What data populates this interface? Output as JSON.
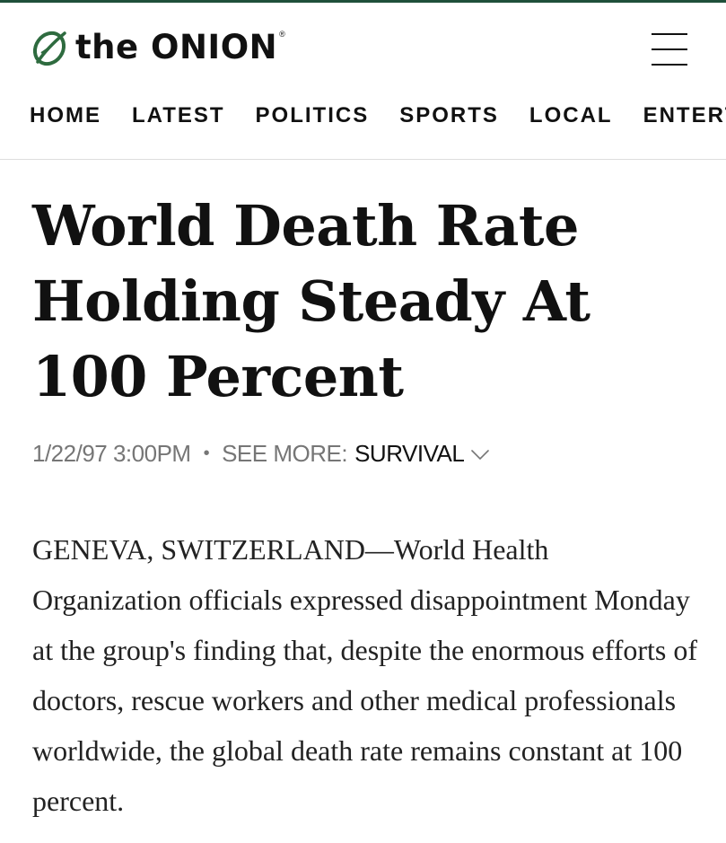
{
  "header": {
    "logo_text": "the ONION",
    "logo_registered": "®",
    "logo_icon": "onion-leaf-icon",
    "menu_icon": "hamburger-menu-icon",
    "brand_color": "#2e6b3f"
  },
  "nav": {
    "items": [
      {
        "label": "HOME"
      },
      {
        "label": "LATEST"
      },
      {
        "label": "POLITICS"
      },
      {
        "label": "SPORTS"
      },
      {
        "label": "LOCAL"
      },
      {
        "label": "ENTERTAINMENT"
      }
    ]
  },
  "article": {
    "headline": "World Death Rate Holding Steady At 100 Percent",
    "timestamp": "1/22/97 3:00PM",
    "separator": "•",
    "see_more_label": "SEE MORE:",
    "tag": "SURVIVAL",
    "tag_icon": "chevron-down-icon",
    "body": "GENEVA, SWITZERLAND—World Health Organization officials expressed disappointment Monday at the group's finding that, despite the enormous efforts of doctors, rescue workers and other medical professionals worldwide, the global death rate remains constant at 100 percent."
  }
}
